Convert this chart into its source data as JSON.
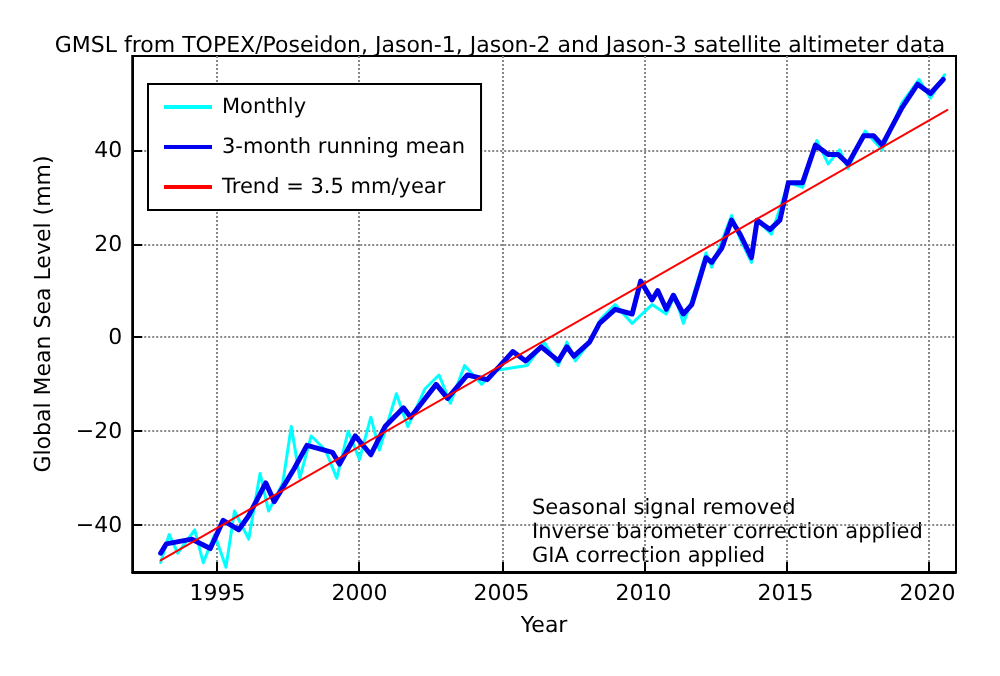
{
  "chart_data": {
    "type": "line",
    "title": "GMSL from TOPEX/Poseidon, Jason-1, Jason-2 and Jason-3 satellite altimeter data",
    "xlabel": "Year",
    "ylabel": "Global Mean Sea Level (mm)",
    "xlim": [
      1992,
      2021
    ],
    "xticks": [
      1995,
      2000,
      2005,
      2010,
      2015,
      2020
    ],
    "ylim": [
      -50,
      60
    ],
    "yticks": [
      -40,
      -20,
      0,
      20,
      40
    ],
    "grid": true,
    "legend": "top left",
    "marker": "none",
    "line_style": "solid",
    "annotations": [
      "Seasonal signal removed",
      "Inverse barometer correction applied",
      "GIA correction applied"
    ],
    "series": [
      {
        "name": "Monthly",
        "color": "#00ffff",
        "x": [
          1993.0,
          1993.3,
          1993.6,
          1994.2,
          1994.5,
          1994.9,
          1995.3,
          1995.6,
          1996.1,
          1996.5,
          1996.8,
          1997.3,
          1997.6,
          1997.9,
          1998.3,
          1998.8,
          1999.2,
          1999.6,
          2000.0,
          2000.4,
          2000.7,
          2001.3,
          2001.7,
          2002.3,
          2002.8,
          2003.2,
          2003.7,
          2004.3,
          2004.8,
          2005.9,
          2006.5,
          2007.0,
          2007.3,
          2007.6,
          2008.1,
          2008.5,
          2009.0,
          2009.6,
          2010.3,
          2010.8,
          2011.1,
          2011.4,
          2011.7,
          2012.2,
          2012.4,
          2013.1,
          2013.4,
          2013.8,
          2014.0,
          2014.5,
          2015.1,
          2015.6,
          2016.1,
          2016.5,
          2016.9,
          2017.2,
          2017.8,
          2018.1,
          2018.4,
          2019.1,
          2019.7,
          2020.1,
          2020.6
        ],
        "values": [
          -48,
          -42,
          -46,
          -41,
          -48,
          -42,
          -49,
          -37,
          -43,
          -29,
          -37,
          -31,
          -19,
          -30,
          -21,
          -24,
          -30,
          -20,
          -26,
          -17,
          -24,
          -12,
          -19,
          -11,
          -8,
          -14,
          -6,
          -10,
          -7,
          -6,
          -1,
          -6,
          -1,
          -5,
          -1,
          4,
          7,
          3,
          7,
          5,
          9,
          3,
          8,
          18,
          15,
          26,
          21,
          16,
          25,
          22,
          33,
          32,
          42,
          37,
          40,
          36,
          44,
          42,
          40,
          50,
          55,
          51,
          56
        ]
      },
      {
        "name": "3-month running mean",
        "color": "#0000ee",
        "x": [
          1993.0,
          1993.2,
          1994.1,
          1994.75,
          1995.2,
          1995.75,
          1996.1,
          1996.7,
          1997.0,
          1997.7,
          1998.15,
          1999.05,
          1999.3,
          1999.85,
          2000.4,
          2000.9,
          2001.55,
          2001.8,
          2002.7,
          2003.1,
          2003.8,
          2004.5,
          2005.4,
          2005.85,
          2006.4,
          2007.0,
          2007.3,
          2007.55,
          2008.1,
          2008.45,
          2009.0,
          2009.6,
          2009.9,
          2010.3,
          2010.5,
          2010.8,
          2011.05,
          2011.4,
          2011.7,
          2012.2,
          2012.4,
          2012.75,
          2013.1,
          2013.4,
          2013.8,
          2014.0,
          2014.45,
          2014.8,
          2015.1,
          2015.6,
          2016.05,
          2016.5,
          2016.85,
          2017.2,
          2017.75,
          2018.1,
          2018.4,
          2019.1,
          2019.65,
          2020.1,
          2020.55
        ],
        "values": [
          -46,
          -44,
          -43,
          -45,
          -39,
          -41,
          -38,
          -31,
          -35,
          -28,
          -23,
          -24.5,
          -27,
          -21,
          -25,
          -19,
          -15,
          -17,
          -10,
          -13,
          -8,
          -9,
          -3,
          -5,
          -2,
          -5,
          -2,
          -4,
          -1,
          3,
          6,
          5,
          12,
          8,
          10,
          6,
          9,
          5,
          7,
          17,
          16,
          19,
          25,
          22,
          17,
          25,
          23,
          25,
          33,
          33,
          41,
          39,
          39,
          37,
          43,
          43,
          41,
          49,
          54,
          52,
          55
        ]
      },
      {
        "name": "Trend = 3.5 mm/year",
        "color": "#ff0000",
        "x": [
          1993.0,
          2020.7
        ],
        "values": [
          -47.5,
          48.5
        ]
      }
    ]
  }
}
